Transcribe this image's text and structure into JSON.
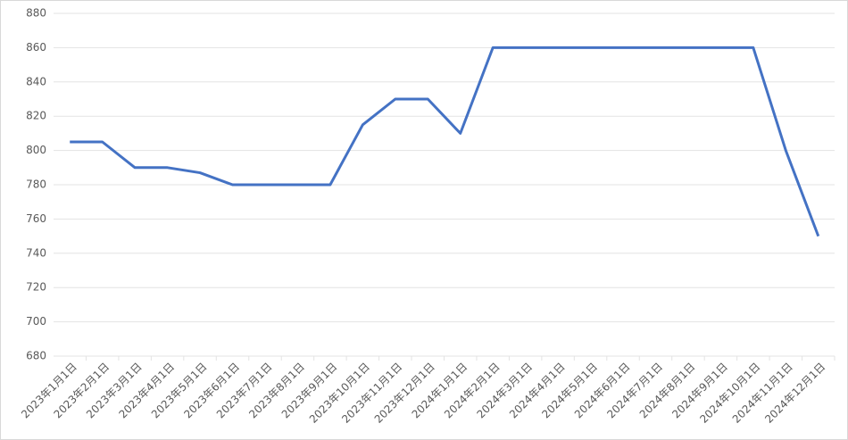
{
  "chart_data": {
    "type": "line",
    "categories": [
      "2023年1月1日",
      "2023年2月1日",
      "2023年3月1日",
      "2023年4月1日",
      "2023年5月1日",
      "2023年6月1日",
      "2023年7月1日",
      "2023年8月1日",
      "2023年9月1日",
      "2023年10月1日",
      "2023年11月1日",
      "2023年12月1日",
      "2024年1月1日",
      "2024年2月1日",
      "2024年3月1日",
      "2024年4月1日",
      "2024年5月1日",
      "2024年6月1日",
      "2024年7月1日",
      "2024年8月1日",
      "2024年9月1日",
      "2024年10月1日",
      "2024年11月1日",
      "2024年12月1日"
    ],
    "values": [
      805,
      805,
      790,
      790,
      787,
      780,
      780,
      780,
      780,
      815,
      830,
      830,
      810,
      860,
      860,
      860,
      860,
      860,
      860,
      860,
      860,
      860,
      800,
      750
    ],
    "color": "#4472c4",
    "ylim": [
      680,
      880
    ],
    "yticks": [
      680,
      700,
      720,
      740,
      760,
      780,
      800,
      820,
      840,
      860,
      880
    ],
    "grid": true
  }
}
